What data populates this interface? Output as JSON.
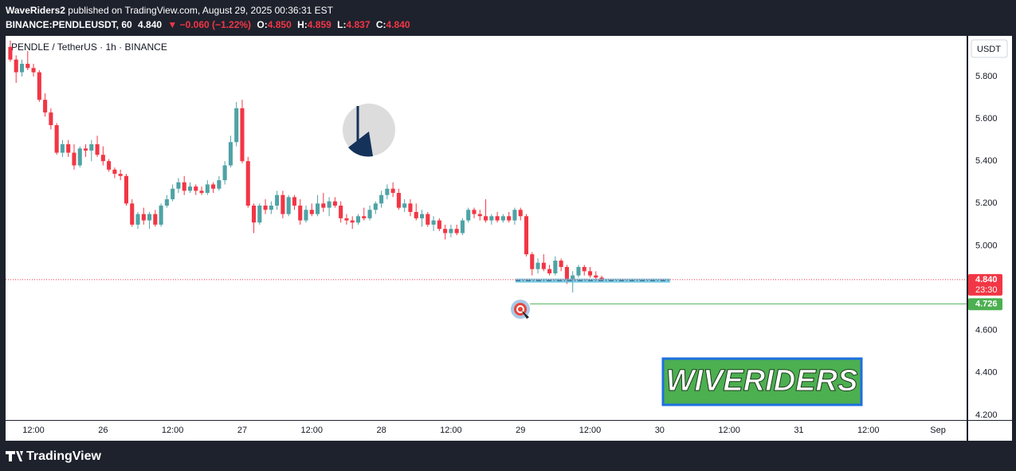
{
  "header": {
    "author": "WaveRiders2",
    "published": "published on TradingView.com, August 29, 2025 00:36:31 EST",
    "symbol": "BINANCE:PENDLEUSDT, 60",
    "last": "4.840",
    "change": "▼ −0.060 (−1.22%)",
    "o_label": "O:",
    "open": "4.850",
    "h_label": "H:",
    "high": "4.859",
    "l_label": "L:",
    "low": "4.837",
    "c_label": "C:",
    "close": "4.840"
  },
  "chart_data": {
    "type": "candlestick",
    "title": "PENDLE / TetherUS · 1h · BINANCE",
    "y_axis_label": "USDT",
    "categories": [
      null,
      null,
      null,
      null,
      "12:00",
      null,
      null,
      null,
      null,
      null,
      null,
      null,
      null,
      null,
      null,
      null,
      "26",
      null,
      null,
      null,
      null,
      null,
      null,
      null,
      null,
      null,
      null,
      null,
      "12:00",
      null,
      null,
      null,
      null,
      null,
      null,
      null,
      null,
      null,
      null,
      null,
      "27",
      null,
      null,
      null,
      null,
      null,
      null,
      null,
      null,
      null,
      null,
      null,
      "12:00",
      null,
      null,
      null,
      null,
      null,
      null,
      null,
      null,
      null,
      null,
      null,
      "28",
      null,
      null,
      null,
      null,
      null,
      null,
      null,
      null,
      null,
      null,
      null,
      "12:00",
      null,
      null,
      null,
      null,
      null,
      null,
      null,
      null,
      null,
      null,
      null,
      "29",
      null,
      null,
      null,
      null,
      null,
      null,
      null,
      null,
      null,
      null,
      null,
      "12:00",
      null,
      null,
      null,
      null,
      null,
      null,
      null,
      null,
      null,
      null,
      null,
      "30",
      null,
      null,
      null,
      null,
      null,
      null,
      null,
      null,
      null,
      null,
      null,
      "12:00",
      null,
      null,
      null,
      null,
      null,
      null,
      null,
      null,
      null,
      null,
      null,
      "31",
      null,
      null,
      null,
      null,
      null,
      null,
      null,
      null,
      null,
      null,
      null,
      "12:00",
      null,
      null,
      null,
      null,
      null,
      null,
      null,
      null,
      null,
      null,
      null,
      "Sep",
      null,
      null,
      null,
      null
    ],
    "open": [
      5.94,
      5.88,
      5.82,
      5.86,
      5.84,
      5.82,
      5.69,
      5.63,
      5.57,
      5.44,
      5.48,
      5.44,
      5.38,
      5.46,
      5.45,
      5.48,
      5.43,
      5.4,
      5.36,
      5.34,
      5.33,
      5.2,
      5.1,
      5.15,
      5.12,
      5.15,
      5.1,
      5.19,
      5.22,
      5.27,
      5.3,
      5.26,
      5.28,
      5.26,
      5.25,
      5.29,
      5.27,
      5.31,
      5.38,
      5.49,
      5.65,
      5.4,
      5.19,
      5.11,
      5.19,
      5.17,
      5.19,
      5.24,
      5.15,
      5.23,
      5.19,
      5.12,
      5.17,
      5.15,
      5.2,
      5.18,
      5.21,
      5.19,
      5.13,
      5.12,
      5.11,
      5.14,
      5.13,
      5.17,
      5.2,
      5.24,
      5.27,
      5.25,
      5.18,
      5.2,
      5.16,
      5.13,
      5.15,
      5.1,
      5.12,
      5.08,
      5.06,
      5.08,
      5.06,
      5.12,
      5.17,
      5.15,
      5.14,
      5.12,
      5.14,
      5.12,
      5.14,
      5.12,
      5.17,
      5.14,
      4.96,
      4.89,
      4.92,
      4.89,
      4.87,
      4.93,
      4.9,
      4.84,
      4.86,
      4.9,
      4.88,
      4.86,
      4.85,
      null,
      null,
      null,
      null,
      null,
      null,
      null,
      null,
      null,
      null,
      null,
      null,
      null,
      null,
      null,
      null,
      null,
      null,
      null,
      null,
      null,
      null,
      null,
      null,
      null,
      null,
      null,
      null,
      null,
      null,
      null,
      null,
      null,
      null,
      null,
      null,
      null,
      null,
      null,
      null,
      null,
      null,
      null,
      null,
      null,
      null,
      null,
      null,
      null,
      null,
      null,
      null,
      null,
      null,
      null,
      null,
      null,
      null,
      null,
      null,
      null,
      null
    ],
    "high": [
      5.97,
      5.9,
      5.88,
      5.92,
      5.86,
      5.83,
      5.72,
      5.65,
      5.58,
      5.5,
      5.5,
      5.48,
      5.47,
      5.48,
      5.5,
      5.52,
      5.47,
      5.41,
      5.37,
      5.36,
      5.34,
      5.22,
      5.16,
      5.18,
      5.16,
      5.17,
      5.2,
      5.24,
      5.29,
      5.32,
      5.33,
      5.3,
      5.29,
      5.28,
      5.31,
      5.3,
      5.33,
      5.4,
      5.52,
      5.68,
      5.69,
      5.42,
      5.2,
      5.2,
      5.22,
      5.21,
      5.26,
      5.26,
      5.24,
      5.24,
      5.22,
      5.19,
      5.2,
      5.24,
      5.25,
      5.23,
      5.23,
      5.21,
      5.15,
      5.14,
      5.15,
      5.18,
      5.19,
      5.21,
      5.26,
      5.29,
      5.3,
      5.27,
      5.22,
      5.22,
      5.2,
      5.17,
      5.16,
      5.14,
      5.13,
      5.1,
      5.1,
      5.1,
      5.13,
      5.18,
      5.18,
      5.17,
      5.22,
      5.15,
      5.16,
      5.15,
      5.16,
      5.18,
      5.18,
      5.15,
      4.97,
      4.94,
      4.96,
      4.91,
      4.95,
      4.94,
      4.91,
      4.88,
      4.91,
      4.91,
      4.9,
      4.88,
      4.859,
      null,
      null,
      null,
      null,
      null,
      null,
      null,
      null,
      null,
      null,
      null,
      null,
      null,
      null,
      null,
      null,
      null,
      null,
      null,
      null,
      null,
      null,
      null,
      null,
      null,
      null,
      null,
      null,
      null,
      null,
      null,
      null,
      null,
      null,
      null,
      null,
      null,
      null,
      null,
      null,
      null,
      null,
      null,
      null,
      null,
      null,
      null,
      null,
      null,
      null,
      null,
      null,
      null,
      null,
      null,
      null,
      null,
      null,
      null,
      null,
      null,
      null
    ],
    "low": [
      5.87,
      5.77,
      5.8,
      5.83,
      5.8,
      5.68,
      5.61,
      5.55,
      5.43,
      5.42,
      5.42,
      5.36,
      5.37,
      5.42,
      5.4,
      5.42,
      5.38,
      5.35,
      5.32,
      5.31,
      5.19,
      5.09,
      5.08,
      5.1,
      5.08,
      5.09,
      5.09,
      5.18,
      5.21,
      5.25,
      5.24,
      5.25,
      5.24,
      5.24,
      5.24,
      5.25,
      5.26,
      5.29,
      5.37,
      5.47,
      5.39,
      5.18,
      5.06,
      5.1,
      5.15,
      5.15,
      5.17,
      5.13,
      5.14,
      5.17,
      5.1,
      5.11,
      5.14,
      5.14,
      5.16,
      5.14,
      5.18,
      5.11,
      5.1,
      5.08,
      5.1,
      5.12,
      5.12,
      5.15,
      5.18,
      5.22,
      5.23,
      5.17,
      5.16,
      5.14,
      5.12,
      5.09,
      5.09,
      5.07,
      5.07,
      5.03,
      5.04,
      5.05,
      5.05,
      5.11,
      5.13,
      5.12,
      5.11,
      5.1,
      5.11,
      5.11,
      5.11,
      5.1,
      5.12,
      4.95,
      4.86,
      4.87,
      4.88,
      4.86,
      4.86,
      4.88,
      4.82,
      4.78,
      4.85,
      4.86,
      4.85,
      4.84,
      4.837,
      null,
      null,
      null,
      null,
      null,
      null,
      null,
      null,
      null,
      null,
      null,
      null,
      null,
      null,
      null,
      null,
      null,
      null,
      null,
      null,
      null,
      null,
      null,
      null,
      null,
      null,
      null,
      null,
      null,
      null,
      null,
      null,
      null,
      null,
      null,
      null,
      null,
      null,
      null,
      null,
      null,
      null,
      null,
      null,
      null,
      null,
      null,
      null,
      null,
      null,
      null,
      null,
      null,
      null,
      null,
      null,
      null,
      null,
      null,
      null,
      null,
      null
    ],
    "close": [
      5.88,
      5.82,
      5.86,
      5.84,
      5.82,
      5.69,
      5.63,
      5.57,
      5.44,
      5.48,
      5.44,
      5.38,
      5.46,
      5.45,
      5.48,
      5.43,
      5.4,
      5.36,
      5.34,
      5.33,
      5.2,
      5.1,
      5.15,
      5.12,
      5.15,
      5.1,
      5.19,
      5.22,
      5.27,
      5.3,
      5.26,
      5.28,
      5.26,
      5.25,
      5.29,
      5.27,
      5.31,
      5.38,
      5.49,
      5.65,
      5.4,
      5.19,
      5.11,
      5.19,
      5.17,
      5.19,
      5.24,
      5.15,
      5.23,
      5.19,
      5.12,
      5.17,
      5.15,
      5.2,
      5.18,
      5.21,
      5.19,
      5.13,
      5.12,
      5.11,
      5.14,
      5.13,
      5.17,
      5.2,
      5.24,
      5.27,
      5.25,
      5.18,
      5.2,
      5.16,
      5.13,
      5.15,
      5.1,
      5.12,
      5.08,
      5.06,
      5.08,
      5.06,
      5.12,
      5.17,
      5.15,
      5.14,
      5.12,
      5.14,
      5.12,
      5.14,
      5.12,
      5.17,
      5.14,
      4.96,
      4.89,
      4.92,
      4.89,
      4.87,
      4.93,
      4.9,
      4.84,
      4.86,
      4.9,
      4.88,
      4.86,
      4.85,
      4.84,
      null,
      null,
      null,
      null,
      null,
      null,
      null,
      null,
      null,
      null,
      null,
      null,
      null,
      null,
      null,
      null,
      null,
      null,
      null,
      null,
      null,
      null,
      null,
      null,
      null,
      null,
      null,
      null,
      null,
      null,
      null,
      null,
      null,
      null,
      null,
      null,
      null,
      null,
      null,
      null,
      null,
      null,
      null,
      null,
      null,
      null,
      null,
      null,
      null,
      null,
      null,
      null,
      null,
      null,
      null,
      null,
      null,
      null,
      null,
      null,
      null,
      null
    ],
    "up_color": "#4fa3a5",
    "down_color": "#f23645",
    "ylim": [
      4.177,
      5.992
    ],
    "yticks": [
      {
        "value": 4.2,
        "label": "4.200"
      },
      {
        "value": 4.4,
        "label": "4.400"
      },
      {
        "value": 4.6,
        "label": "4.600"
      },
      {
        "value": 4.8,
        "label": "4.800"
      },
      {
        "value": 5.0,
        "label": "5.000"
      },
      {
        "value": 5.2,
        "label": "5.200"
      },
      {
        "value": 5.4,
        "label": "5.400"
      },
      {
        "value": 5.6,
        "label": "5.600"
      },
      {
        "value": 5.8,
        "label": "5.800"
      }
    ],
    "grid": false,
    "current_price": {
      "value": 4.84,
      "label": "4.840",
      "countdown": "23:30",
      "color": "#f23645"
    },
    "target": {
      "value": 4.726,
      "label": "4.726",
      "color": "#4caf50"
    },
    "zone": {
      "low": 4.826,
      "high": 4.845,
      "color": "#5bc0de"
    },
    "watermark": "WIVERIDERS"
  },
  "footer": {
    "brand": "TradingView"
  }
}
